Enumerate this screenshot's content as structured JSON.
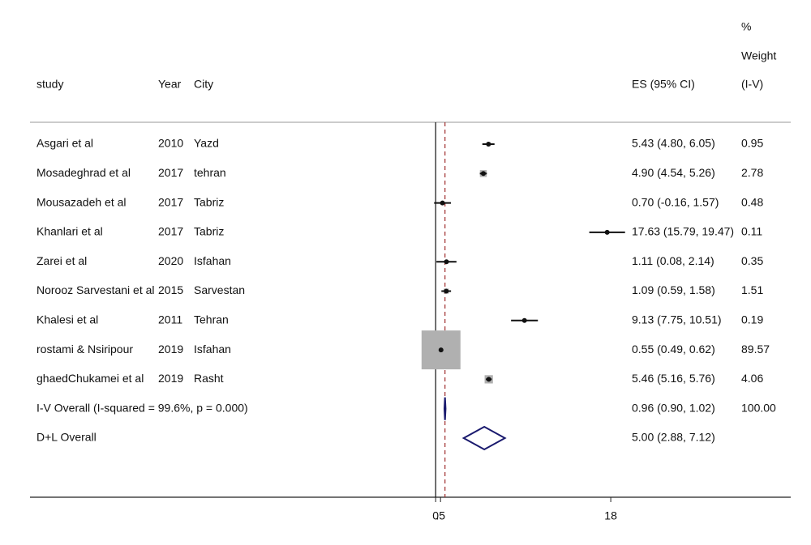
{
  "chart_data": {
    "type": "forest",
    "headers": {
      "pct": "%",
      "weight": "Weight",
      "study": "study",
      "year": "Year",
      "city": "City",
      "es": "ES (95% CI)",
      "method": "(I-V)"
    },
    "studies": [
      {
        "name": "Asgari et al",
        "year": 2010,
        "city": "Yazd",
        "es": 5.43,
        "lo": 4.8,
        "hi": 6.05,
        "ci_label": "5.43 (4.80, 6.05)",
        "weight": 0.95,
        "weight_label": "0.95"
      },
      {
        "name": "Mosadeghrad et al",
        "year": 2017,
        "city": "tehran",
        "es": 4.9,
        "lo": 4.54,
        "hi": 5.26,
        "ci_label": "4.90 (4.54, 5.26)",
        "weight": 2.78,
        "weight_label": "2.78"
      },
      {
        "name": "Mousazadeh et al",
        "year": 2017,
        "city": "Tabriz",
        "es": 0.7,
        "lo": -0.16,
        "hi": 1.57,
        "ci_label": "0.70 (-0.16, 1.57)",
        "weight": 0.48,
        "weight_label": "0.48"
      },
      {
        "name": "Khanlari et al",
        "year": 2017,
        "city": "Tabriz",
        "es": 17.63,
        "lo": 15.79,
        "hi": 19.47,
        "ci_label": "17.63 (15.79, 19.47)",
        "weight": 0.11,
        "weight_label": "0.11"
      },
      {
        "name": "Zarei et al",
        "year": 2020,
        "city": "Isfahan",
        "es": 1.11,
        "lo": 0.08,
        "hi": 2.14,
        "ci_label": "1.11 (0.08, 2.14)",
        "weight": 0.35,
        "weight_label": "0.35"
      },
      {
        "name": "Norooz Sarvestani et al",
        "year": 2015,
        "city": "Sarvestan",
        "es": 1.09,
        "lo": 0.59,
        "hi": 1.58,
        "ci_label": "1.09 (0.59, 1.58)",
        "weight": 1.51,
        "weight_label": "1.51"
      },
      {
        "name": "Khalesi et al",
        "year": 2011,
        "city": "Tehran",
        "es": 9.13,
        "lo": 7.75,
        "hi": 10.51,
        "ci_label": "9.13 (7.75, 10.51)",
        "weight": 0.19,
        "weight_label": "0.19"
      },
      {
        "name": "rostami & Nsiripour",
        "year": 2019,
        "city": "Isfahan",
        "es": 0.55,
        "lo": 0.49,
        "hi": 0.62,
        "ci_label": "0.55 (0.49, 0.62)",
        "weight": 89.57,
        "weight_label": "89.57"
      },
      {
        "name": "ghaedChukamei et al",
        "year": 2019,
        "city": "Rasht",
        "es": 5.46,
        "lo": 5.16,
        "hi": 5.76,
        "ci_label": "5.46 (5.16, 5.76)",
        "weight": 4.06,
        "weight_label": "4.06"
      }
    ],
    "overall": [
      {
        "name": "I-V Overall  (I-squared = 99.6%, p = 0.000)",
        "es": 0.96,
        "lo": 0.9,
        "hi": 1.02,
        "ci_label": "0.96 (0.90, 1.02)",
        "weight_label": "100.00"
      },
      {
        "name": "D+L Overall",
        "es": 5.0,
        "lo": 2.88,
        "hi": 7.12,
        "ci_label": "5.00 (2.88, 7.12)"
      }
    ],
    "null_line": 0,
    "xlim": [
      -41.7,
      36.5
    ],
    "xticks": [
      0,
      {
        "value": 0.5,
        "label": ".5"
      },
      18
    ]
  }
}
